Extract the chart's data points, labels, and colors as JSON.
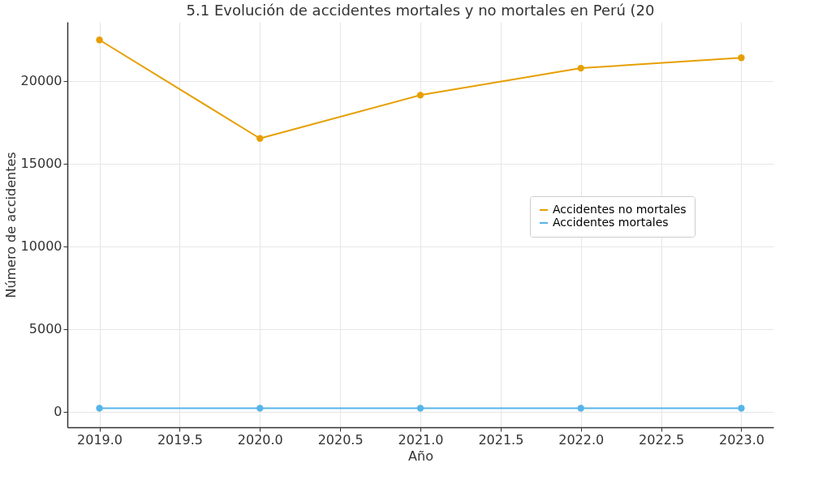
{
  "chart_data": {
    "type": "line",
    "title": "5.1 Evolución de accidentes mortales y no mortales en Perú (20",
    "xlabel": "Año",
    "ylabel": "Número de accidentes",
    "x": [
      2019,
      2020,
      2021,
      2022,
      2023
    ],
    "series": [
      {
        "name": "Accidentes no mortales",
        "color": "#e69f00",
        "values": [
          22480,
          16520,
          19140,
          20770,
          21400
        ]
      },
      {
        "name": "Accidentes mortales",
        "color": "#56b4e9",
        "values": [
          200,
          200,
          200,
          200,
          200
        ]
      }
    ],
    "xlim": [
      2018.8,
      2023.2
    ],
    "xticks": [
      {
        "value": 2019,
        "label": "2019.0"
      },
      2019.5,
      {
        "value": 2020,
        "label": "2020.0"
      },
      2020.5,
      {
        "value": 2021,
        "label": "2021.0"
      },
      2021.5,
      {
        "value": 2022,
        "label": "2022.0"
      },
      2022.5,
      {
        "value": 2023,
        "label": "2023.0"
      }
    ],
    "ylim": [
      -950,
      23570
    ],
    "yticks": [
      0,
      5000,
      10000,
      15000,
      20000
    ],
    "grid": true,
    "legend": "right",
    "marker": "circle",
    "line_style": "solid"
  }
}
